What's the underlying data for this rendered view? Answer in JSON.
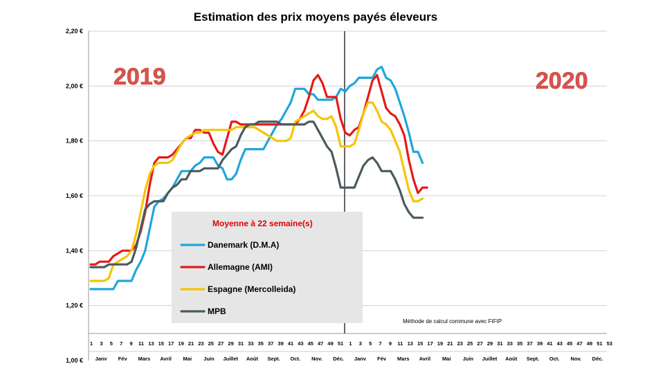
{
  "chart_data": {
    "type": "line",
    "title": "Estimation des prix moyens payés éleveurs",
    "year_labels": [
      "2019",
      "2020"
    ],
    "note": "Méthode de calcul commune avec FIFIP",
    "legend": {
      "title": "Moyenne à  22 semaine(s)",
      "placement": "left-bottom"
    },
    "ylim": [
      1.0,
      2.2
    ],
    "yticks": [
      "1,00 €",
      "1,20 €",
      "1,40 €",
      "1,60 €",
      "1,80 €",
      "2,00 €",
      "2,20 €"
    ],
    "ytick_values": [
      1.0,
      1.2,
      1.4,
      1.6,
      1.8,
      2.0,
      2.2
    ],
    "grid": true,
    "week_ticks": [
      "1",
      "3",
      "5",
      "7",
      "9",
      "11",
      "13",
      "15",
      "17",
      "19",
      "21",
      "23",
      "25",
      "27",
      "29",
      "31",
      "33",
      "35",
      "37",
      "39",
      "41",
      "43",
      "45",
      "47",
      "49",
      "51",
      "1",
      "3",
      "5",
      "7",
      "9",
      "11",
      "13",
      "15",
      "17",
      "19",
      "21",
      "23",
      "25",
      "27",
      "29",
      "31",
      "33",
      "35",
      "37",
      "39",
      "41",
      "43",
      "45",
      "47",
      "49",
      "51",
      "53"
    ],
    "month_labels": [
      "Janv",
      "Fév",
      "Mars",
      "Avril",
      "Mai",
      "Juin",
      "Juillet",
      "Août",
      "Sept.",
      "Oct.",
      "Nov.",
      "Déc.",
      "Janv",
      "Fév",
      "Mars",
      "Avril",
      "Mai",
      "Juin",
      "Juillet",
      "Août",
      "Sept.",
      "Oct.",
      "Nov.",
      "Déc."
    ],
    "series": [
      {
        "name": "Danemark (D.M.A)",
        "color": "#1fa6dc",
        "values": [
          1.26,
          1.26,
          1.26,
          1.26,
          1.26,
          1.26,
          1.29,
          1.29,
          1.29,
          1.29,
          1.33,
          1.36,
          1.4,
          1.48,
          1.56,
          1.58,
          1.59,
          1.61,
          1.63,
          1.66,
          1.69,
          1.69,
          1.69,
          1.71,
          1.72,
          1.74,
          1.74,
          1.74,
          1.71,
          1.7,
          1.66,
          1.66,
          1.68,
          1.73,
          1.77,
          1.77,
          1.77,
          1.77,
          1.77,
          1.8,
          1.83,
          1.86,
          1.88,
          1.91,
          1.94,
          1.99,
          1.99,
          1.99,
          1.97,
          1.97,
          1.95,
          1.95,
          1.95,
          1.95,
          1.96,
          1.99,
          1.98,
          2.0,
          2.01,
          2.03,
          2.03,
          2.03,
          2.03,
          2.06,
          2.07,
          2.03,
          2.02,
          1.99,
          1.94,
          1.89,
          1.83,
          1.76,
          1.76,
          1.72
        ]
      },
      {
        "name": "Allemagne (AMI)",
        "color": "#e61919",
        "values": [
          1.35,
          1.35,
          1.36,
          1.36,
          1.36,
          1.38,
          1.39,
          1.4,
          1.4,
          1.4,
          1.42,
          1.47,
          1.54,
          1.64,
          1.72,
          1.74,
          1.74,
          1.74,
          1.75,
          1.77,
          1.79,
          1.81,
          1.81,
          1.84,
          1.84,
          1.83,
          1.83,
          1.79,
          1.76,
          1.75,
          1.81,
          1.87,
          1.87,
          1.86,
          1.86,
          1.86,
          1.86,
          1.86,
          1.86,
          1.86,
          1.86,
          1.86,
          1.86,
          1.86,
          1.86,
          1.86,
          1.88,
          1.91,
          1.96,
          2.02,
          2.04,
          2.01,
          1.96,
          1.96,
          1.96,
          1.88,
          1.83,
          1.82,
          1.84,
          1.85,
          1.9,
          1.96,
          2.02,
          2.04,
          1.98,
          1.92,
          1.9,
          1.89,
          1.86,
          1.82,
          1.73,
          1.66,
          1.61,
          1.63,
          1.63
        ]
      },
      {
        "name": "Espagne (Mercolleida)",
        "color": "#f5c400",
        "values": [
          1.29,
          1.29,
          1.29,
          1.29,
          1.3,
          1.35,
          1.36,
          1.37,
          1.38,
          1.4,
          1.46,
          1.54,
          1.62,
          1.68,
          1.71,
          1.72,
          1.72,
          1.72,
          1.73,
          1.76,
          1.79,
          1.81,
          1.82,
          1.83,
          1.83,
          1.84,
          1.84,
          1.84,
          1.84,
          1.84,
          1.84,
          1.84,
          1.85,
          1.85,
          1.85,
          1.85,
          1.85,
          1.84,
          1.83,
          1.82,
          1.81,
          1.8,
          1.8,
          1.8,
          1.81,
          1.87,
          1.88,
          1.89,
          1.9,
          1.91,
          1.89,
          1.88,
          1.88,
          1.89,
          1.85,
          1.78,
          1.78,
          1.78,
          1.79,
          1.84,
          1.9,
          1.94,
          1.94,
          1.91,
          1.87,
          1.86,
          1.84,
          1.8,
          1.76,
          1.69,
          1.62,
          1.58,
          1.58,
          1.59
        ]
      },
      {
        "name": "MPB",
        "color": "#4a5a5f",
        "values": [
          1.34,
          1.34,
          1.34,
          1.34,
          1.35,
          1.35,
          1.35,
          1.35,
          1.35,
          1.36,
          1.41,
          1.48,
          1.55,
          1.57,
          1.58,
          1.58,
          1.58,
          1.61,
          1.63,
          1.64,
          1.66,
          1.66,
          1.69,
          1.69,
          1.69,
          1.7,
          1.7,
          1.7,
          1.7,
          1.73,
          1.75,
          1.77,
          1.78,
          1.82,
          1.85,
          1.86,
          1.86,
          1.87,
          1.87,
          1.87,
          1.87,
          1.87,
          1.86,
          1.86,
          1.86,
          1.86,
          1.86,
          1.86,
          1.87,
          1.87,
          1.84,
          1.81,
          1.78,
          1.76,
          1.7,
          1.63,
          1.63,
          1.63,
          1.63,
          1.67,
          1.71,
          1.73,
          1.74,
          1.72,
          1.69,
          1.69,
          1.69,
          1.66,
          1.62,
          1.57,
          1.54,
          1.52,
          1.52,
          1.52
        ]
      }
    ]
  }
}
